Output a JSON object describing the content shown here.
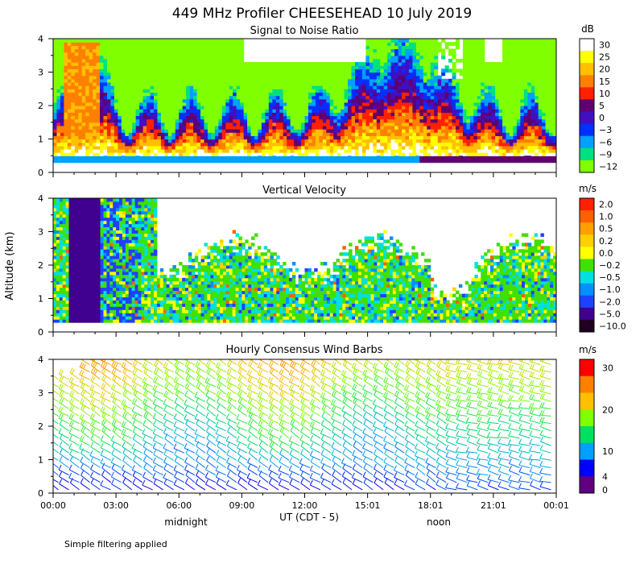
{
  "title": "449 MHz Profiler CHEESEHEAD 10 July 2019",
  "footnote": "Simple filtering applied",
  "shared_axes": {
    "ylabel": "Altitude (km)",
    "xlabel": "UT  (CDT - 5)",
    "x_tick_labels": [
      "00:00",
      "03:00",
      "06:00",
      "09:00",
      "12:00",
      "15:01",
      "18:01",
      "21:01",
      "00:01"
    ],
    "x_tick_hours": [
      0,
      3,
      6,
      9,
      12,
      15,
      18,
      21,
      24
    ],
    "local_labels": [
      {
        "text": "midnight",
        "hour": 5
      },
      {
        "text": "noon",
        "hour": 17
      }
    ]
  },
  "chart_data": [
    {
      "type": "heatmap",
      "title": "Signal to Noise Ratio",
      "xlabel": "UT  (CDT - 5)",
      "ylabel": "Altitude (km)",
      "xlim": [
        0,
        24
      ],
      "ylim": [
        0,
        4
      ],
      "y_ticks": [
        0,
        1,
        2,
        3,
        4
      ],
      "colorbar": {
        "unit": "dB",
        "labels": [
          "30",
          "25",
          "20",
          "15",
          "10",
          "5",
          "0",
          "−3",
          "−6",
          "−9",
          "−12"
        ],
        "colors": [
          "#ffffff",
          "#ffff00",
          "#ffc000",
          "#ff8000",
          "#ff2000",
          "#600070",
          "#4010c0",
          "#0030ff",
          "#00a0ff",
          "#00e080",
          "#80ff00"
        ]
      },
      "features": "High SNR (>15 dB) in lowest 1 km, strongest 01:00-02:30 and 13:00-20:00 UT; weak returns above 2.5 km"
    },
    {
      "type": "heatmap",
      "title": "Vertical Velocity",
      "xlabel": "UT  (CDT - 5)",
      "ylabel": "Altitude (km)",
      "xlim": [
        0,
        24
      ],
      "ylim": [
        0,
        4
      ],
      "y_ticks": [
        0,
        1,
        2,
        3,
        4
      ],
      "colorbar": {
        "unit": "m/s",
        "labels": [
          "2.0",
          "1.0",
          "0.5",
          "0.2",
          "0.0",
          "−0.2",
          "−0.5",
          "−1.0",
          "−2.0",
          "−5.0",
          "−10.0"
        ],
        "colors": [
          "#ff2000",
          "#ff6000",
          "#ffa000",
          "#ffd000",
          "#ffff00",
          "#40e000",
          "#00e0e0",
          "#0090ff",
          "#2040ff",
          "#400090",
          "#200020"
        ]
      },
      "features": "Strong downward velocity (-5 to -10 m/s) 00:40-02:10 UT from 0.3-4 km; mostly near-zero values elsewhere"
    },
    {
      "type": "wind_barbs",
      "title": "Hourly Consensus Wind Barbs",
      "xlabel": "UT  (CDT - 5)",
      "ylabel": "Altitude (km)",
      "xlim": [
        0,
        24
      ],
      "ylim": [
        0,
        4
      ],
      "y_ticks": [
        0,
        1,
        2,
        3,
        4
      ],
      "colorbar": {
        "unit": "m/s",
        "labels": [
          "30",
          "20",
          "10",
          "4",
          "0"
        ],
        "ticks": [
          30,
          20,
          10,
          4,
          0
        ],
        "colors": [
          "#ff0000",
          "#ff8000",
          "#ffc000",
          "#80ff00",
          "#00e060",
          "#00a0ff",
          "#0000ff",
          "#600080"
        ]
      },
      "features": "Westerly to west-northwesterly winds of 15-25 m/s above 2 km; weaker 5-10 m/s winds below 1 km"
    }
  ]
}
